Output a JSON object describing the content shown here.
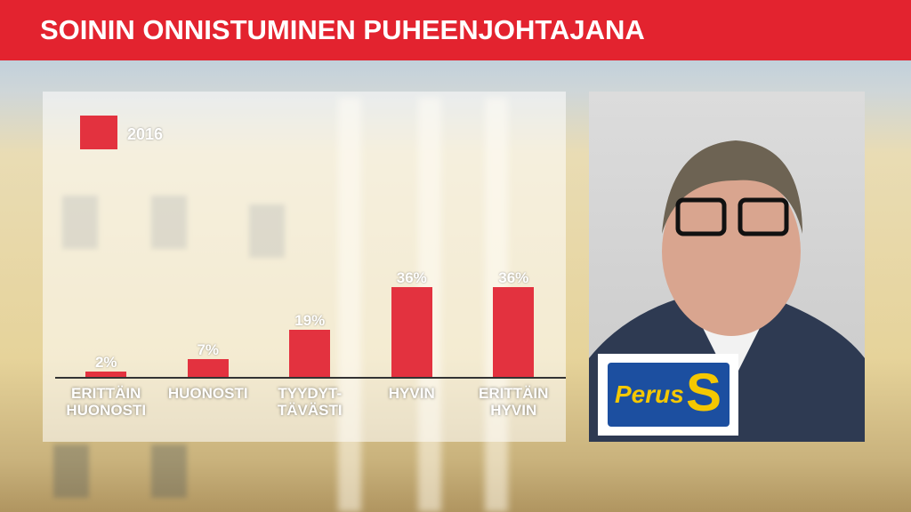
{
  "chart_data": {
    "type": "bar",
    "title": "SOININ ONNISTUMINEN PUHEENJOHTAJANA",
    "categories": [
      "ERITTÄIN\nHUONOSTI",
      "HUONOSTI",
      "TYYDYT-\nTÄVÄSTI",
      "HYVIN",
      "ERITTÄIN\nHYVIN"
    ],
    "series": [
      {
        "name": "2016",
        "color": "#e3323f",
        "values": [
          2,
          7,
          19,
          36,
          36
        ],
        "value_labels": [
          "2%",
          "7%",
          "19%",
          "36%",
          "36%"
        ]
      }
    ]
  },
  "logo": {
    "text": "Perus",
    "letter": "S"
  }
}
